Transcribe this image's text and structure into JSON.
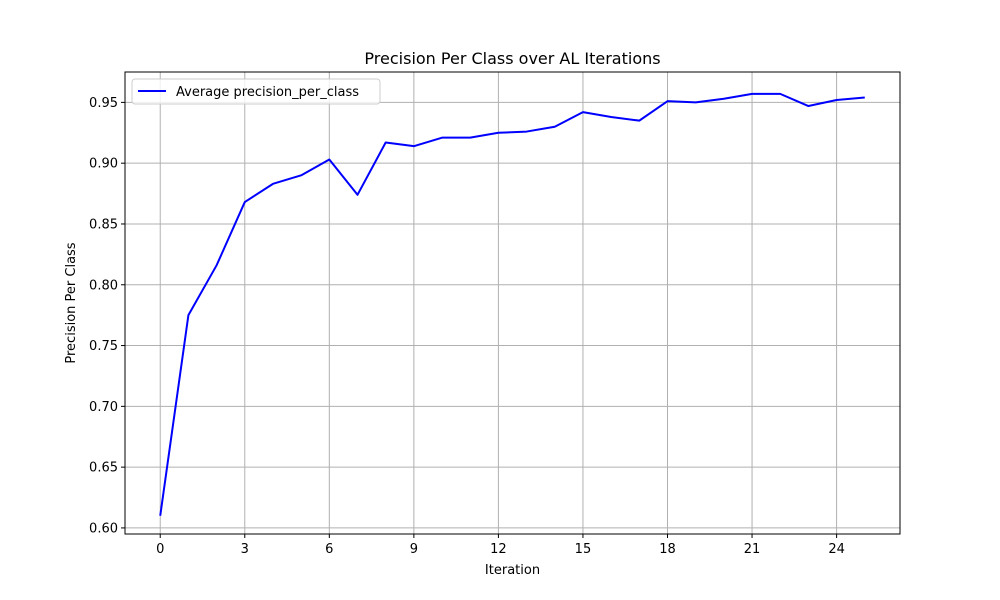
{
  "chart_data": {
    "type": "line",
    "title": "Precision Per Class over AL Iterations",
    "xlabel": "Iteration",
    "ylabel": "Precision Per Class",
    "xlim": [
      -1.25,
      26.25
    ],
    "ylim": [
      0.595,
      0.975
    ],
    "xticks": [
      0,
      3,
      6,
      9,
      12,
      15,
      18,
      21,
      24
    ],
    "yticks": [
      0.6,
      0.65,
      0.7,
      0.75,
      0.8,
      0.85,
      0.9,
      0.95
    ],
    "grid": true,
    "legend_position": "top-left",
    "series": [
      {
        "name": "Average precision_per_class",
        "color": "#0000ff",
        "x": [
          0,
          1,
          2,
          3,
          4,
          5,
          6,
          7,
          8,
          9,
          10,
          11,
          12,
          13,
          14,
          15,
          16,
          17,
          18,
          19,
          20,
          21,
          22,
          23,
          24,
          25
        ],
        "values": [
          0.61,
          0.775,
          0.816,
          0.868,
          0.883,
          0.89,
          0.903,
          0.874,
          0.917,
          0.914,
          0.921,
          0.921,
          0.925,
          0.926,
          0.93,
          0.942,
          0.938,
          0.935,
          0.951,
          0.95,
          0.953,
          0.957,
          0.957,
          0.947,
          0.952,
          0.954
        ]
      }
    ]
  }
}
